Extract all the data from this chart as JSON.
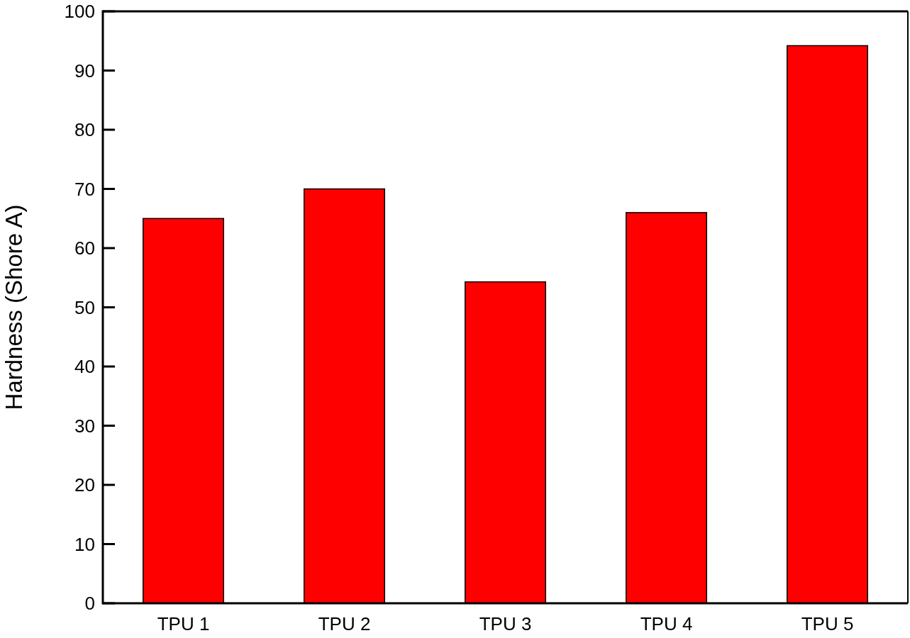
{
  "chart_data": {
    "type": "bar",
    "ylabel": "Hardness (Shore A)",
    "categories": [
      "TPU 1",
      "TPU 2",
      "TPU 3",
      "TPU 4",
      "TPU 5"
    ],
    "values": [
      65,
      70,
      54.3,
      66,
      94.2
    ],
    "color": "#ff0000",
    "ylim": [
      0,
      100
    ],
    "yticks": [
      0,
      10,
      20,
      30,
      40,
      50,
      60,
      70,
      80,
      90,
      100
    ]
  }
}
